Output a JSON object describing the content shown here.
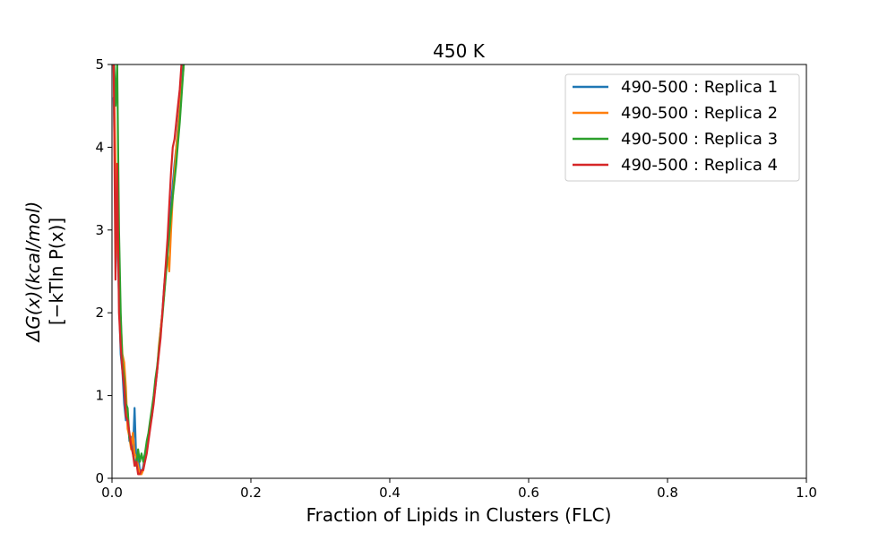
{
  "chart_data": {
    "type": "line",
    "title": "450 K",
    "xlabel": "Fraction of Lipids in Clusters (FLC)",
    "ylabel_line1": "ΔG(x)(kcal/mol)",
    "ylabel_line2": "[−kTln P(x)]",
    "xlim": [
      0.0,
      1.0
    ],
    "ylim": [
      0,
      5
    ],
    "x_ticks": [
      "0.0",
      "0.2",
      "0.4",
      "0.6",
      "0.8",
      "1.0"
    ],
    "y_ticks": [
      "0",
      "1",
      "2",
      "3",
      "4",
      "5"
    ],
    "grid": false,
    "legend_position": "top-right",
    "series": [
      {
        "name": "490-500 : Replica 1",
        "color": "#1f77b4",
        "x": [
          0.0025,
          0.005,
          0.0075,
          0.01,
          0.0125,
          0.015,
          0.0175,
          0.02,
          0.0225,
          0.025,
          0.0275,
          0.03,
          0.0325,
          0.035,
          0.0375,
          0.04,
          0.0425,
          0.045,
          0.0475,
          0.05,
          0.0525,
          0.055,
          0.0575,
          0.06,
          0.0625,
          0.065,
          0.0675,
          0.07,
          0.0725,
          0.075,
          0.0775,
          0.08,
          0.0825,
          0.085,
          0.0875,
          0.09,
          0.0925,
          0.095,
          0.0975,
          0.1,
          0.1025,
          0.105
        ],
        "values": [
          4.6,
          3.4,
          3.0,
          2.2,
          1.5,
          1.3,
          0.9,
          0.7,
          0.8,
          0.45,
          0.5,
          0.3,
          0.85,
          0.2,
          0.3,
          0.1,
          0.05,
          0.15,
          0.3,
          0.4,
          0.5,
          0.65,
          0.75,
          0.95,
          1.1,
          1.3,
          1.55,
          1.8,
          2.0,
          2.3,
          2.55,
          2.8,
          3.05,
          3.3,
          3.55,
          3.8,
          4.0,
          4.25,
          4.5,
          4.75,
          5.0,
          5.3
        ]
      },
      {
        "name": "490-500 : Replica 2",
        "color": "#ff7f0e",
        "x": [
          0.0025,
          0.005,
          0.0075,
          0.01,
          0.0125,
          0.015,
          0.0175,
          0.02,
          0.0225,
          0.025,
          0.0275,
          0.03,
          0.0325,
          0.035,
          0.0375,
          0.04,
          0.0425,
          0.045,
          0.0475,
          0.05,
          0.0525,
          0.055,
          0.0575,
          0.06,
          0.0625,
          0.065,
          0.0675,
          0.07,
          0.0725,
          0.075,
          0.0775,
          0.08,
          0.0825,
          0.085,
          0.0875,
          0.09,
          0.0925,
          0.095,
          0.0975,
          0.1,
          0.1025,
          0.105
        ],
        "values": [
          5.0,
          3.8,
          3.0,
          2.4,
          1.9,
          1.5,
          1.4,
          1.1,
          0.6,
          0.5,
          0.35,
          0.55,
          0.3,
          0.25,
          0.15,
          0.05,
          0.05,
          0.1,
          0.25,
          0.35,
          0.5,
          0.65,
          0.8,
          0.95,
          1.15,
          1.3,
          1.6,
          1.8,
          2.0,
          2.2,
          2.5,
          2.7,
          2.5,
          3.0,
          3.4,
          3.7,
          4.0,
          4.2,
          4.45,
          4.7,
          4.9,
          5.2
        ]
      },
      {
        "name": "490-500 : Replica 3",
        "color": "#2ca02c",
        "x": [
          0.0025,
          0.005,
          0.0075,
          0.01,
          0.0125,
          0.015,
          0.0175,
          0.02,
          0.0225,
          0.025,
          0.0275,
          0.03,
          0.0325,
          0.035,
          0.0375,
          0.04,
          0.0425,
          0.045,
          0.0475,
          0.05,
          0.0525,
          0.055,
          0.0575,
          0.06,
          0.0625,
          0.065,
          0.0675,
          0.07,
          0.0725,
          0.075,
          0.0775,
          0.08,
          0.0825,
          0.085,
          0.0875,
          0.09,
          0.0925,
          0.095,
          0.0975,
          0.1,
          0.1025,
          0.105
        ],
        "values": [
          5.2,
          4.5,
          5.0,
          3.0,
          2.0,
          1.4,
          1.2,
          0.9,
          0.85,
          0.5,
          0.4,
          0.3,
          0.2,
          0.15,
          0.35,
          0.2,
          0.3,
          0.2,
          0.3,
          0.45,
          0.55,
          0.7,
          0.85,
          1.0,
          1.2,
          1.35,
          1.55,
          1.75,
          1.95,
          2.2,
          2.45,
          2.7,
          2.95,
          3.2,
          3.4,
          3.6,
          3.8,
          4.05,
          4.3,
          4.6,
          4.9,
          5.2
        ]
      },
      {
        "name": "490-500 : Replica 4",
        "color": "#d62728",
        "x": [
          0.0025,
          0.005,
          0.0075,
          0.01,
          0.0125,
          0.015,
          0.0175,
          0.02,
          0.0225,
          0.025,
          0.0275,
          0.03,
          0.0325,
          0.035,
          0.0375,
          0.04,
          0.0425,
          0.045,
          0.0475,
          0.05,
          0.0525,
          0.055,
          0.0575,
          0.06,
          0.0625,
          0.065,
          0.0675,
          0.07,
          0.0725,
          0.075,
          0.0775,
          0.08,
          0.0825,
          0.085,
          0.0875,
          0.09,
          0.0925,
          0.095,
          0.0975,
          0.1,
          0.1025,
          0.105
        ],
        "values": [
          5.0,
          2.4,
          3.8,
          2.0,
          1.6,
          1.3,
          1.1,
          0.75,
          0.7,
          0.55,
          0.4,
          0.3,
          0.15,
          0.2,
          0.05,
          0.05,
          0.1,
          0.1,
          0.2,
          0.3,
          0.45,
          0.6,
          0.75,
          0.9,
          1.1,
          1.3,
          1.5,
          1.7,
          2.0,
          2.3,
          2.6,
          2.9,
          3.3,
          3.7,
          4.0,
          4.1,
          4.3,
          4.5,
          4.7,
          5.0,
          5.2,
          5.4
        ]
      }
    ]
  }
}
